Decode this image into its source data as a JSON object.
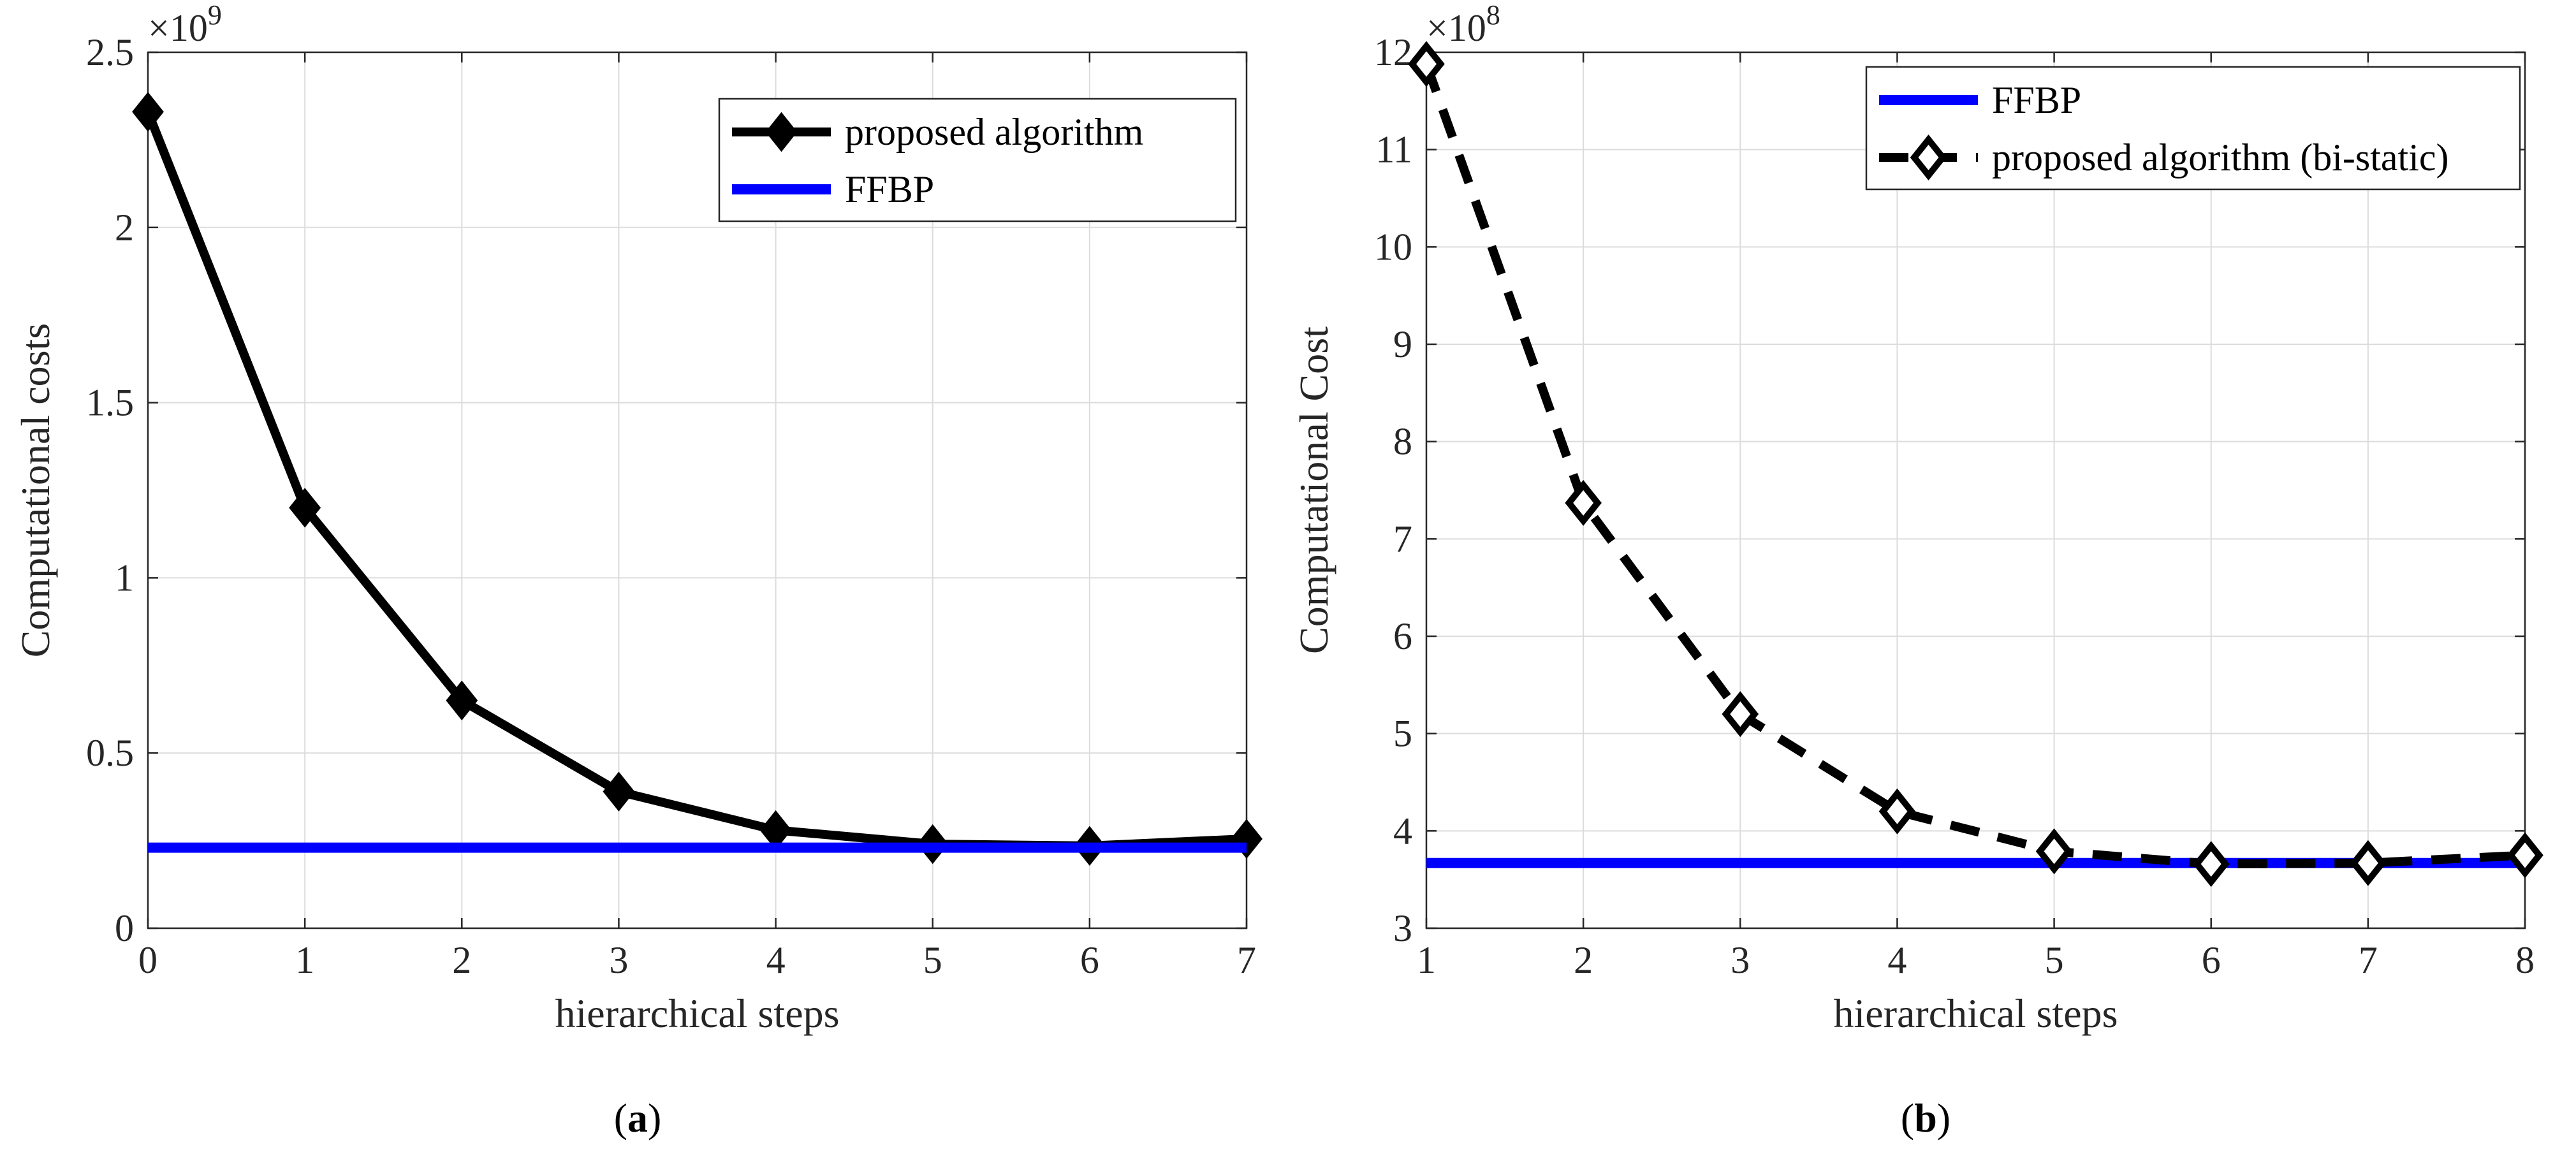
{
  "chart_data": [
    {
      "id": "a",
      "type": "line",
      "caption": "a",
      "xlabel": "hierarchical steps",
      "ylabel": "Computational costs",
      "exponent_label": "×10",
      "exponent_power": "9",
      "xlim": [
        0,
        7
      ],
      "ylim": [
        0,
        2.5
      ],
      "xticks": [
        0,
        1,
        2,
        3,
        4,
        5,
        6,
        7
      ],
      "yticks": [
        0,
        0.5,
        1,
        1.5,
        2,
        2.5
      ],
      "ytick_labels": [
        "0",
        "0.5",
        "1",
        "1.5",
        "2",
        "2.5"
      ],
      "grid": true,
      "legend_position": "top-right",
      "series": [
        {
          "name": "proposed algorithm",
          "color": "#000000",
          "style": "solid",
          "marker": "filled-diamond",
          "x": [
            0,
            1,
            2,
            3,
            4,
            5,
            6,
            7
          ],
          "y": [
            2.33,
            1.2,
            0.65,
            0.39,
            0.28,
            0.24,
            0.235,
            0.255
          ]
        },
        {
          "name": "FFBP",
          "color": "#0000ff",
          "style": "solid",
          "marker": "none",
          "x": [
            0,
            7
          ],
          "y": [
            0.23,
            0.23
          ]
        }
      ]
    },
    {
      "id": "b",
      "type": "line",
      "caption": "b",
      "xlabel": "hierarchical steps",
      "ylabel": "Computational Cost",
      "exponent_label": "×10",
      "exponent_power": "8",
      "xlim": [
        1,
        8
      ],
      "ylim": [
        3,
        12
      ],
      "xticks": [
        1,
        2,
        3,
        4,
        5,
        6,
        7,
        8
      ],
      "yticks": [
        3,
        4,
        5,
        6,
        7,
        8,
        9,
        10,
        11,
        12
      ],
      "ytick_labels": [
        "3",
        "4",
        "5",
        "6",
        "7",
        "8",
        "9",
        "10",
        "11",
        "12"
      ],
      "grid": true,
      "legend_position": "top-right",
      "series": [
        {
          "name": "FFBP",
          "color": "#0000ff",
          "style": "solid",
          "marker": "none",
          "x": [
            1,
            8
          ],
          "y": [
            3.67,
            3.67
          ]
        },
        {
          "name": "proposed algorithm (bi-static)",
          "color": "#000000",
          "style": "dashed",
          "marker": "open-diamond",
          "x": [
            1,
            2,
            3,
            4,
            5,
            6,
            7,
            8
          ],
          "y": [
            11.88,
            7.37,
            5.2,
            4.2,
            3.79,
            3.66,
            3.67,
            3.75
          ]
        }
      ]
    }
  ]
}
